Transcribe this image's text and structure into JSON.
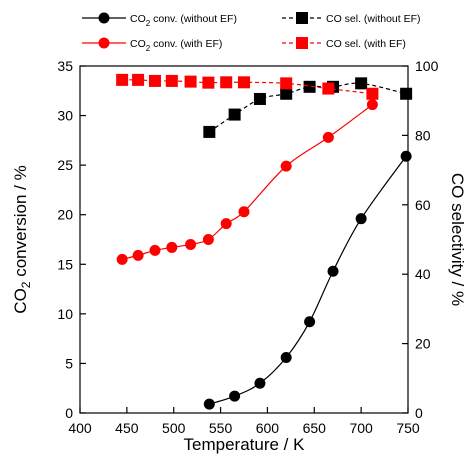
{
  "chart_data": {
    "type": "scatter",
    "xlabel": "Temperature / K",
    "ylabel_left": {
      "pre": "CO",
      "sub": "2",
      "post": " conversion / %"
    },
    "ylabel_right": "CO selectivity / %",
    "xlim": [
      400,
      750
    ],
    "xticks": [
      400,
      450,
      500,
      550,
      600,
      650,
      700,
      750
    ],
    "ylim_left": [
      0,
      35
    ],
    "yticks_left": [
      0,
      5,
      10,
      15,
      20,
      25,
      30,
      35
    ],
    "ylim_right": [
      0,
      100
    ],
    "yticks_right": [
      0,
      20,
      40,
      60,
      80,
      100
    ],
    "grid": false,
    "legend_position": "top",
    "series": [
      {
        "name": {
          "pre": "CO",
          "sub": "2",
          "post": " conv. (without EF)"
        },
        "axis": "left",
        "marker": "circle",
        "line": "solid",
        "color": "#000000",
        "x": [
          538,
          565,
          592,
          620,
          645,
          670,
          700,
          748
        ],
        "y": [
          0.9,
          1.7,
          3.0,
          5.6,
          9.2,
          14.3,
          19.6,
          25.9
        ]
      },
      {
        "name": {
          "pre": "CO",
          "sub": "2",
          "post": " conv. (with EF)"
        },
        "axis": "left",
        "marker": "circle",
        "line": "solid",
        "color": "#ff0000",
        "x": [
          445,
          462,
          480,
          498,
          518,
          537,
          556,
          575,
          620,
          665,
          712
        ],
        "y": [
          15.5,
          15.9,
          16.4,
          16.7,
          17.0,
          17.5,
          19.1,
          20.3,
          24.9,
          27.8,
          31.1
        ]
      },
      {
        "name": {
          "pre": "CO sel. (without EF)",
          "sub": "",
          "post": ""
        },
        "axis": "right",
        "marker": "square",
        "line": "dashed",
        "color": "#000000",
        "x": [
          538,
          565,
          592,
          620,
          645,
          670,
          700,
          748
        ],
        "y": [
          81,
          86,
          90.5,
          92,
          94,
          94,
          95,
          92
        ]
      },
      {
        "name": {
          "pre": "CO sel. (with EF)",
          "sub": "",
          "post": ""
        },
        "axis": "right",
        "marker": "square",
        "line": "dashed",
        "color": "#ff0000",
        "x": [
          445,
          462,
          480,
          498,
          518,
          537,
          556,
          575,
          620,
          665,
          712
        ],
        "y": [
          96,
          96,
          95.7,
          95.7,
          95.5,
          95.2,
          95.3,
          95.3,
          95,
          93.5,
          92
        ]
      }
    ]
  }
}
